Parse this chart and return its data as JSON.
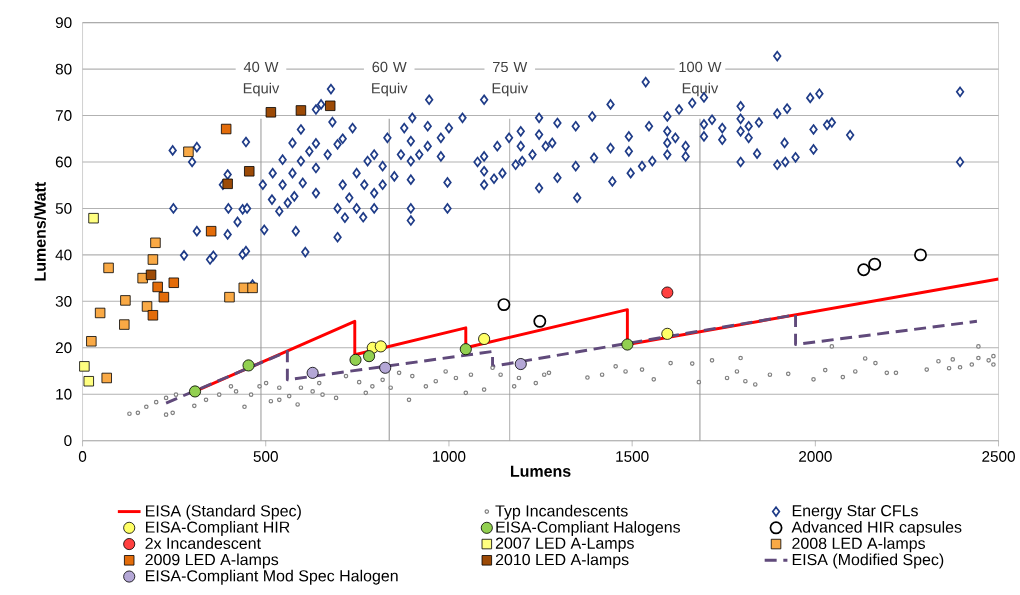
{
  "chart_data": {
    "type": "scatter",
    "xlabel": "Lumens",
    "ylabel": "Lumens/Watt",
    "xlim": [
      0,
      2500
    ],
    "ylim": [
      0,
      90
    ],
    "xticks": [
      0,
      500,
      1000,
      1500,
      2000,
      2500
    ],
    "yticks": [
      0,
      10,
      20,
      30,
      40,
      50,
      60,
      70,
      80,
      90
    ],
    "grid": "y",
    "legend": "bottom",
    "ref_lines": [
      {
        "axis": "x",
        "value": 487,
        "label": "40 W Equiv"
      },
      {
        "axis": "x",
        "value": 837,
        "label": "60 W Equiv"
      },
      {
        "axis": "x",
        "value": 1166,
        "label": "75 W Equiv"
      },
      {
        "axis": "x",
        "value": 1685,
        "label": "100 W Equiv"
      }
    ],
    "series": [
      {
        "name": "EISA (Standard Spec)",
        "type": "line",
        "line_style": "solid",
        "color": "#ff0000",
        "x": [
          307,
          743,
          743,
          1046,
          1046,
          1487,
          1487,
          2500
        ],
        "values": [
          10.6,
          25.7,
          18.5,
          24.3,
          20.0,
          28.2,
          20.7,
          34.8
        ]
      },
      {
        "name": "Typ Incandescents",
        "marker": "circle",
        "color": "#808080",
        "x": [
          128,
          151,
          174,
          201,
          228,
          255,
          228,
          246,
          305,
          337,
          373,
          405,
          442,
          419,
          460,
          483,
          501,
          514,
          537,
          537,
          564,
          587,
          596,
          628,
          646,
          655,
          692,
          719,
          755,
          773,
          791,
          819,
          841,
          864,
          891,
          900,
          937,
          964,
          991,
          1019,
          1046,
          1060,
          1096,
          1119,
          1141,
          1178,
          1191,
          1237,
          1260,
          1273,
          1378,
          1418,
          1455,
          1482,
          1527,
          1559,
          1605,
          1664,
          1718,
          1682,
          1759,
          1786,
          1796,
          1809,
          1836,
          1876,
          1926,
          1995,
          2027,
          2045,
          2075,
          2109,
          2136,
          2164,
          2195,
          2220,
          2304,
          2336,
          2365,
          2375,
          2395,
          2427,
          2445,
          2445,
          2473,
          2486,
          2486
        ],
        "values": [
          5.8,
          6.0,
          7.3,
          8.3,
          9.2,
          9.9,
          5.6,
          6.0,
          7.5,
          8.8,
          9.9,
          11.7,
          7.3,
          10.6,
          9.9,
          11.7,
          12.4,
          8.5,
          8.8,
          11.4,
          9.6,
          7.8,
          11.4,
          10.6,
          12.4,
          9.9,
          9.2,
          13.9,
          12.6,
          10.3,
          11.7,
          13.1,
          11.4,
          14.6,
          8.8,
          13.9,
          11.7,
          12.8,
          14.9,
          13.5,
          10.3,
          14.2,
          11.0,
          15.7,
          14.2,
          11.7,
          13.5,
          12.4,
          14.2,
          14.6,
          13.6,
          14.2,
          16.0,
          14.9,
          15.3,
          13.2,
          16.7,
          16.6,
          17.3,
          12.6,
          13.5,
          14.9,
          17.8,
          12.8,
          12.1,
          14.2,
          14.4,
          13.2,
          15.2,
          20.3,
          13.7,
          14.9,
          17.7,
          16.7,
          14.6,
          14.6,
          15.3,
          17.1,
          15.6,
          17.5,
          15.8,
          16.4,
          20.3,
          17.8,
          17.3,
          18.2,
          16.4
        ]
      },
      {
        "name": "Energy Star CFLs",
        "marker": "diamond",
        "color": "#1f3c88",
        "x": [
          246,
          312,
          299,
          248,
          312,
          277,
          348,
          357,
          396,
          398,
          423,
          437,
          449,
          437,
          446,
          464,
          383,
          396,
          446,
          492,
          519,
          546,
          573,
          596,
          496,
          517,
          537,
          560,
          578,
          546,
          573,
          596,
          619,
          637,
          582,
          608,
          637,
          601,
          637,
          669,
          696,
          710,
          682,
          737,
          678,
          637,
          651,
          696,
          696,
          716,
          710,
          728,
          748,
          748,
          766,
          769,
          778,
          796,
          796,
          796,
          819,
          819,
          832,
          851,
          869,
          878,
          896,
          896,
          896,
          896,
          896,
          900,
          919,
          942,
          942,
          946,
          978,
          978,
          1000,
          996,
          996,
          1037,
          1078,
          1096,
          1096,
          1096,
          1096,
          1123,
          1146,
          1132,
          1164,
          1196,
          1196,
          1182,
          1200,
          1228,
          1246,
          1246,
          1246,
          1264,
          1296,
          1282,
          1346,
          1391,
          1441,
          1537,
          1296,
          1346,
          1396,
          1441,
          1446,
          1350,
          1491,
          1491,
          1496,
          1527,
          1555,
          1546,
          1596,
          1596,
          1596,
          1596,
          1618,
          1646,
          1646,
          1628,
          1664,
          1696,
          1696,
          1696,
          1718,
          1746,
          1746,
          1796,
          1796,
          1796,
          1796,
          1818,
          1818,
          1846,
          1841,
          1896,
          1896,
          1923,
          1896,
          1918,
          1946,
          1916,
          1986,
          2011,
          1995,
          1995,
          2032,
          2045,
          2095,
          2395,
          2395
        ],
        "values": [
          62.5,
          63.2,
          60.0,
          50.0,
          45.1,
          39.9,
          39.0,
          39.8,
          44.4,
          50.0,
          47.1,
          49.8,
          50.0,
          40.1,
          40.8,
          33.6,
          55.1,
          57.3,
          64.3,
          55.1,
          57.6,
          60.5,
          64.1,
          67.0,
          45.4,
          51.9,
          49.4,
          51.2,
          52.6,
          55.1,
          57.6,
          60.2,
          62.3,
          64.0,
          45.1,
          40.6,
          53.3,
          55.5,
          58.7,
          61.6,
          63.8,
          65.0,
          68.6,
          67.3,
          75.7,
          71.3,
          72.4,
          43.8,
          50.0,
          48.0,
          55.1,
          52.3,
          57.6,
          50.0,
          48.1,
          55.1,
          60.2,
          53.3,
          50.0,
          61.6,
          55.1,
          59.1,
          65.2,
          56.9,
          61.6,
          67.3,
          56.2,
          50.0,
          47.4,
          60.2,
          64.5,
          69.5,
          61.6,
          67.7,
          63.4,
          73.4,
          61.2,
          65.2,
          67.3,
          55.6,
          50.0,
          69.5,
          60.0,
          73.4,
          61.2,
          58.0,
          55.1,
          56.4,
          57.6,
          63.4,
          65.2,
          66.6,
          63.4,
          59.4,
          60.2,
          61.6,
          65.9,
          69.5,
          54.4,
          63.4,
          68.4,
          64.1,
          67.7,
          69.8,
          72.4,
          77.2,
          56.6,
          59.1,
          60.9,
          63.0,
          55.8,
          52.3,
          65.5,
          62.3,
          57.6,
          59.1,
          60.2,
          67.7,
          69.8,
          66.6,
          64.1,
          61.6,
          65.2,
          63.4,
          61.2,
          71.3,
          72.7,
          73.9,
          68.1,
          65.5,
          69.1,
          67.3,
          64.8,
          72.0,
          69.3,
          66.6,
          60.0,
          67.7,
          65.2,
          68.5,
          61.8,
          82.8,
          70.4,
          71.5,
          59.4,
          60.0,
          61.0,
          64.1,
          73.8,
          74.7,
          67.0,
          62.7,
          68.0,
          68.5,
          65.8,
          75.1,
          60.0
        ]
      },
      {
        "name": "EISA-Compliant HIR",
        "marker": "circle",
        "color": "#ffff66",
        "x": [
          792,
          814,
          1096,
          1596
        ],
        "values": [
          20.0,
          20.3,
          21.9,
          23.0
        ]
      },
      {
        "name": "EISA-Compliant Halogens",
        "marker": "circle",
        "color": "#92d050",
        "x": [
          307,
          453,
          745,
          782,
          1046,
          1487
        ],
        "values": [
          10.6,
          16.2,
          17.4,
          18.2,
          19.7,
          20.7
        ]
      },
      {
        "name": "Advanced HIR capsules",
        "marker": "circle",
        "color": "#000000",
        "x": [
          1150,
          1248,
          2132,
          2162,
          2287
        ],
        "values": [
          29.3,
          25.7,
          36.8,
          38.0,
          40.0
        ]
      },
      {
        "name": "2x Incandescent",
        "marker": "circle",
        "color": "#ff4040",
        "x": [
          1596
        ],
        "values": [
          31.9
        ]
      },
      {
        "name": "2007 LED A-Lamps",
        "marker": "square",
        "color": "#ffff80",
        "x": [
          30,
          5,
          17
        ],
        "values": [
          47.9,
          16.0,
          12.8
        ]
      },
      {
        "name": "2008 LED A-lamps",
        "marker": "square",
        "color": "#f9a945",
        "x": [
          289,
          199,
          192,
          71,
          164,
          48,
          117,
          114,
          176,
          401,
          440,
          464,
          24,
          66
        ],
        "values": [
          62.2,
          42.6,
          39.0,
          37.2,
          35.0,
          27.5,
          30.2,
          25.0,
          28.9,
          30.9,
          32.9,
          32.9,
          21.4,
          13.5
        ]
      },
      {
        "name": "2009 LED A-lamps",
        "marker": "square",
        "color": "#e36c0a",
        "x": [
          392,
          351,
          205,
          222,
          192,
          249
        ],
        "values": [
          67.1,
          45.1,
          33.1,
          30.9,
          27.0,
          34.0
        ]
      },
      {
        "name": "2010 LED A-lamps",
        "marker": "square",
        "color": "#9c4a06",
        "x": [
          514,
          596,
          676,
          455,
          396,
          187
        ],
        "values": [
          70.7,
          71.1,
          72.1,
          58.0,
          55.3,
          35.7
        ]
      },
      {
        "name": "EISA (Modified Spec)",
        "type": "line",
        "line_style": "dashed",
        "color": "#604a7b",
        "x": [
          228,
          559,
          559,
          1119,
          1119,
          1946,
          1946,
          2441
        ],
        "values": [
          8.1,
          19.2,
          13.1,
          19.2,
          16.0,
          27.1,
          20.7,
          25.7
        ]
      },
      {
        "name": "EISA-Compliant Mod Spec Halogen",
        "marker": "circle",
        "color": "#b4a7d6",
        "x": [
          628,
          826,
          1196
        ],
        "values": [
          14.6,
          15.7,
          16.5
        ]
      }
    ]
  }
}
